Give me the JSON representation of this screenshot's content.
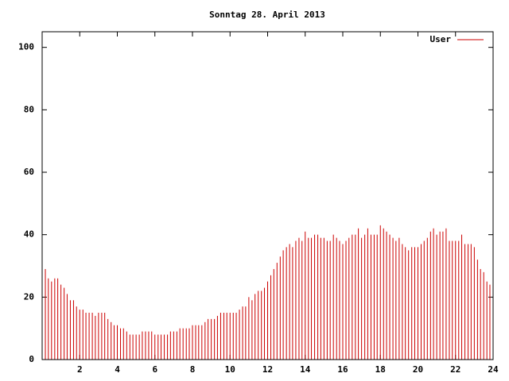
{
  "chart_data": {
    "type": "impulses",
    "title": "Sonntag 28. April 2013",
    "xlim": [
      0,
      24
    ],
    "xticks": [
      2,
      4,
      6,
      8,
      10,
      12,
      14,
      16,
      18,
      20,
      22,
      24
    ],
    "ylim": [
      0,
      105
    ],
    "yticks": [
      0,
      20,
      40,
      60,
      80,
      100
    ],
    "legend": "top-right",
    "x": [
      0,
      0.17,
      0.33,
      0.5,
      0.67,
      0.83,
      1,
      1.17,
      1.33,
      1.5,
      1.67,
      1.83,
      2,
      2.17,
      2.33,
      2.5,
      2.67,
      2.83,
      3,
      3.17,
      3.33,
      3.5,
      3.67,
      3.83,
      4,
      4.17,
      4.33,
      4.5,
      4.67,
      4.83,
      5,
      5.17,
      5.33,
      5.5,
      5.67,
      5.83,
      6,
      6.17,
      6.33,
      6.5,
      6.67,
      6.83,
      7,
      7.17,
      7.33,
      7.5,
      7.67,
      7.83,
      8,
      8.17,
      8.33,
      8.5,
      8.67,
      8.83,
      9,
      9.17,
      9.33,
      9.5,
      9.67,
      9.83,
      10,
      10.17,
      10.33,
      10.5,
      10.67,
      10.83,
      11,
      11.17,
      11.33,
      11.5,
      11.67,
      11.83,
      12,
      12.17,
      12.33,
      12.5,
      12.67,
      12.83,
      13,
      13.17,
      13.33,
      13.5,
      13.67,
      13.83,
      14,
      14.17,
      14.33,
      14.5,
      14.67,
      14.83,
      15,
      15.17,
      15.33,
      15.5,
      15.67,
      15.83,
      16,
      16.17,
      16.33,
      16.5,
      16.67,
      16.83,
      17,
      17.17,
      17.33,
      17.5,
      17.67,
      17.83,
      18,
      18.17,
      18.33,
      18.5,
      18.67,
      18.83,
      19,
      19.17,
      19.33,
      19.5,
      19.67,
      19.83,
      20,
      20.17,
      20.33,
      20.5,
      20.67,
      20.83,
      21,
      21.17,
      21.33,
      21.5,
      21.67,
      21.83,
      22,
      22.17,
      22.33,
      22.5,
      22.67,
      22.83,
      23,
      23.17,
      23.33,
      23.5,
      23.67,
      23.83
    ],
    "series": [
      {
        "name": "User",
        "color": "#cc0000",
        "values": [
          31,
          29,
          26,
          25,
          26,
          26,
          24,
          23,
          21,
          19,
          19,
          17,
          16,
          16,
          15,
          15,
          15,
          14,
          15,
          15,
          15,
          13,
          12,
          11,
          11,
          10,
          10,
          9,
          8,
          8,
          8,
          8,
          9,
          9,
          9,
          9,
          8,
          8,
          8,
          8,
          8,
          9,
          9,
          9,
          10,
          10,
          10,
          10,
          11,
          11,
          11,
          11,
          12,
          13,
          13,
          13,
          14,
          15,
          15,
          15,
          15,
          15,
          15,
          16,
          17,
          17,
          20,
          19,
          21,
          22,
          22,
          23,
          25,
          27,
          29,
          31,
          33,
          35,
          36,
          37,
          36,
          38,
          39,
          38,
          41,
          39,
          39,
          40,
          40,
          39,
          39,
          38,
          38,
          40,
          39,
          38,
          37,
          38,
          39,
          40,
          40,
          42,
          39,
          40,
          42,
          40,
          40,
          40,
          43,
          42,
          41,
          40,
          39,
          38,
          39,
          37,
          36,
          35,
          36,
          36,
          36,
          37,
          38,
          39,
          41,
          42,
          40,
          41,
          41,
          42,
          38,
          38,
          38,
          38,
          40,
          37,
          37,
          37,
          36,
          32,
          29,
          28,
          25,
          24
        ]
      }
    ]
  }
}
